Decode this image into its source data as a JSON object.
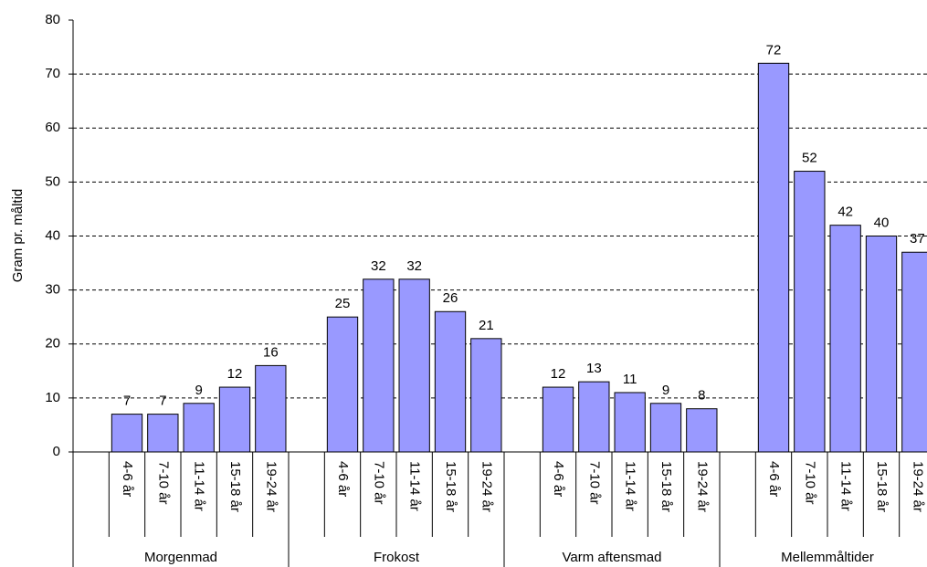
{
  "chart_data": {
    "type": "bar",
    "y_label": "Gram pr. måltid",
    "subcategories": [
      "4-6 år",
      "7-10 år",
      "11-14 år",
      "15-18 år",
      "19-24 år"
    ],
    "groups": [
      {
        "name": "Morgenmad",
        "values": [
          7,
          7,
          9,
          12,
          16
        ]
      },
      {
        "name": "Frokost",
        "values": [
          25,
          32,
          32,
          26,
          21
        ]
      },
      {
        "name": "Varm aftensmad",
        "values": [
          12,
          13,
          11,
          9,
          8
        ]
      },
      {
        "name": "Mellemmåltider",
        "values": [
          72,
          52,
          42,
          40,
          37
        ]
      }
    ],
    "color": "#9999ff",
    "ylim": [
      0,
      80
    ],
    "yticks": [
      0,
      10,
      20,
      30,
      40,
      50,
      60,
      70,
      80
    ],
    "grid": true
  }
}
